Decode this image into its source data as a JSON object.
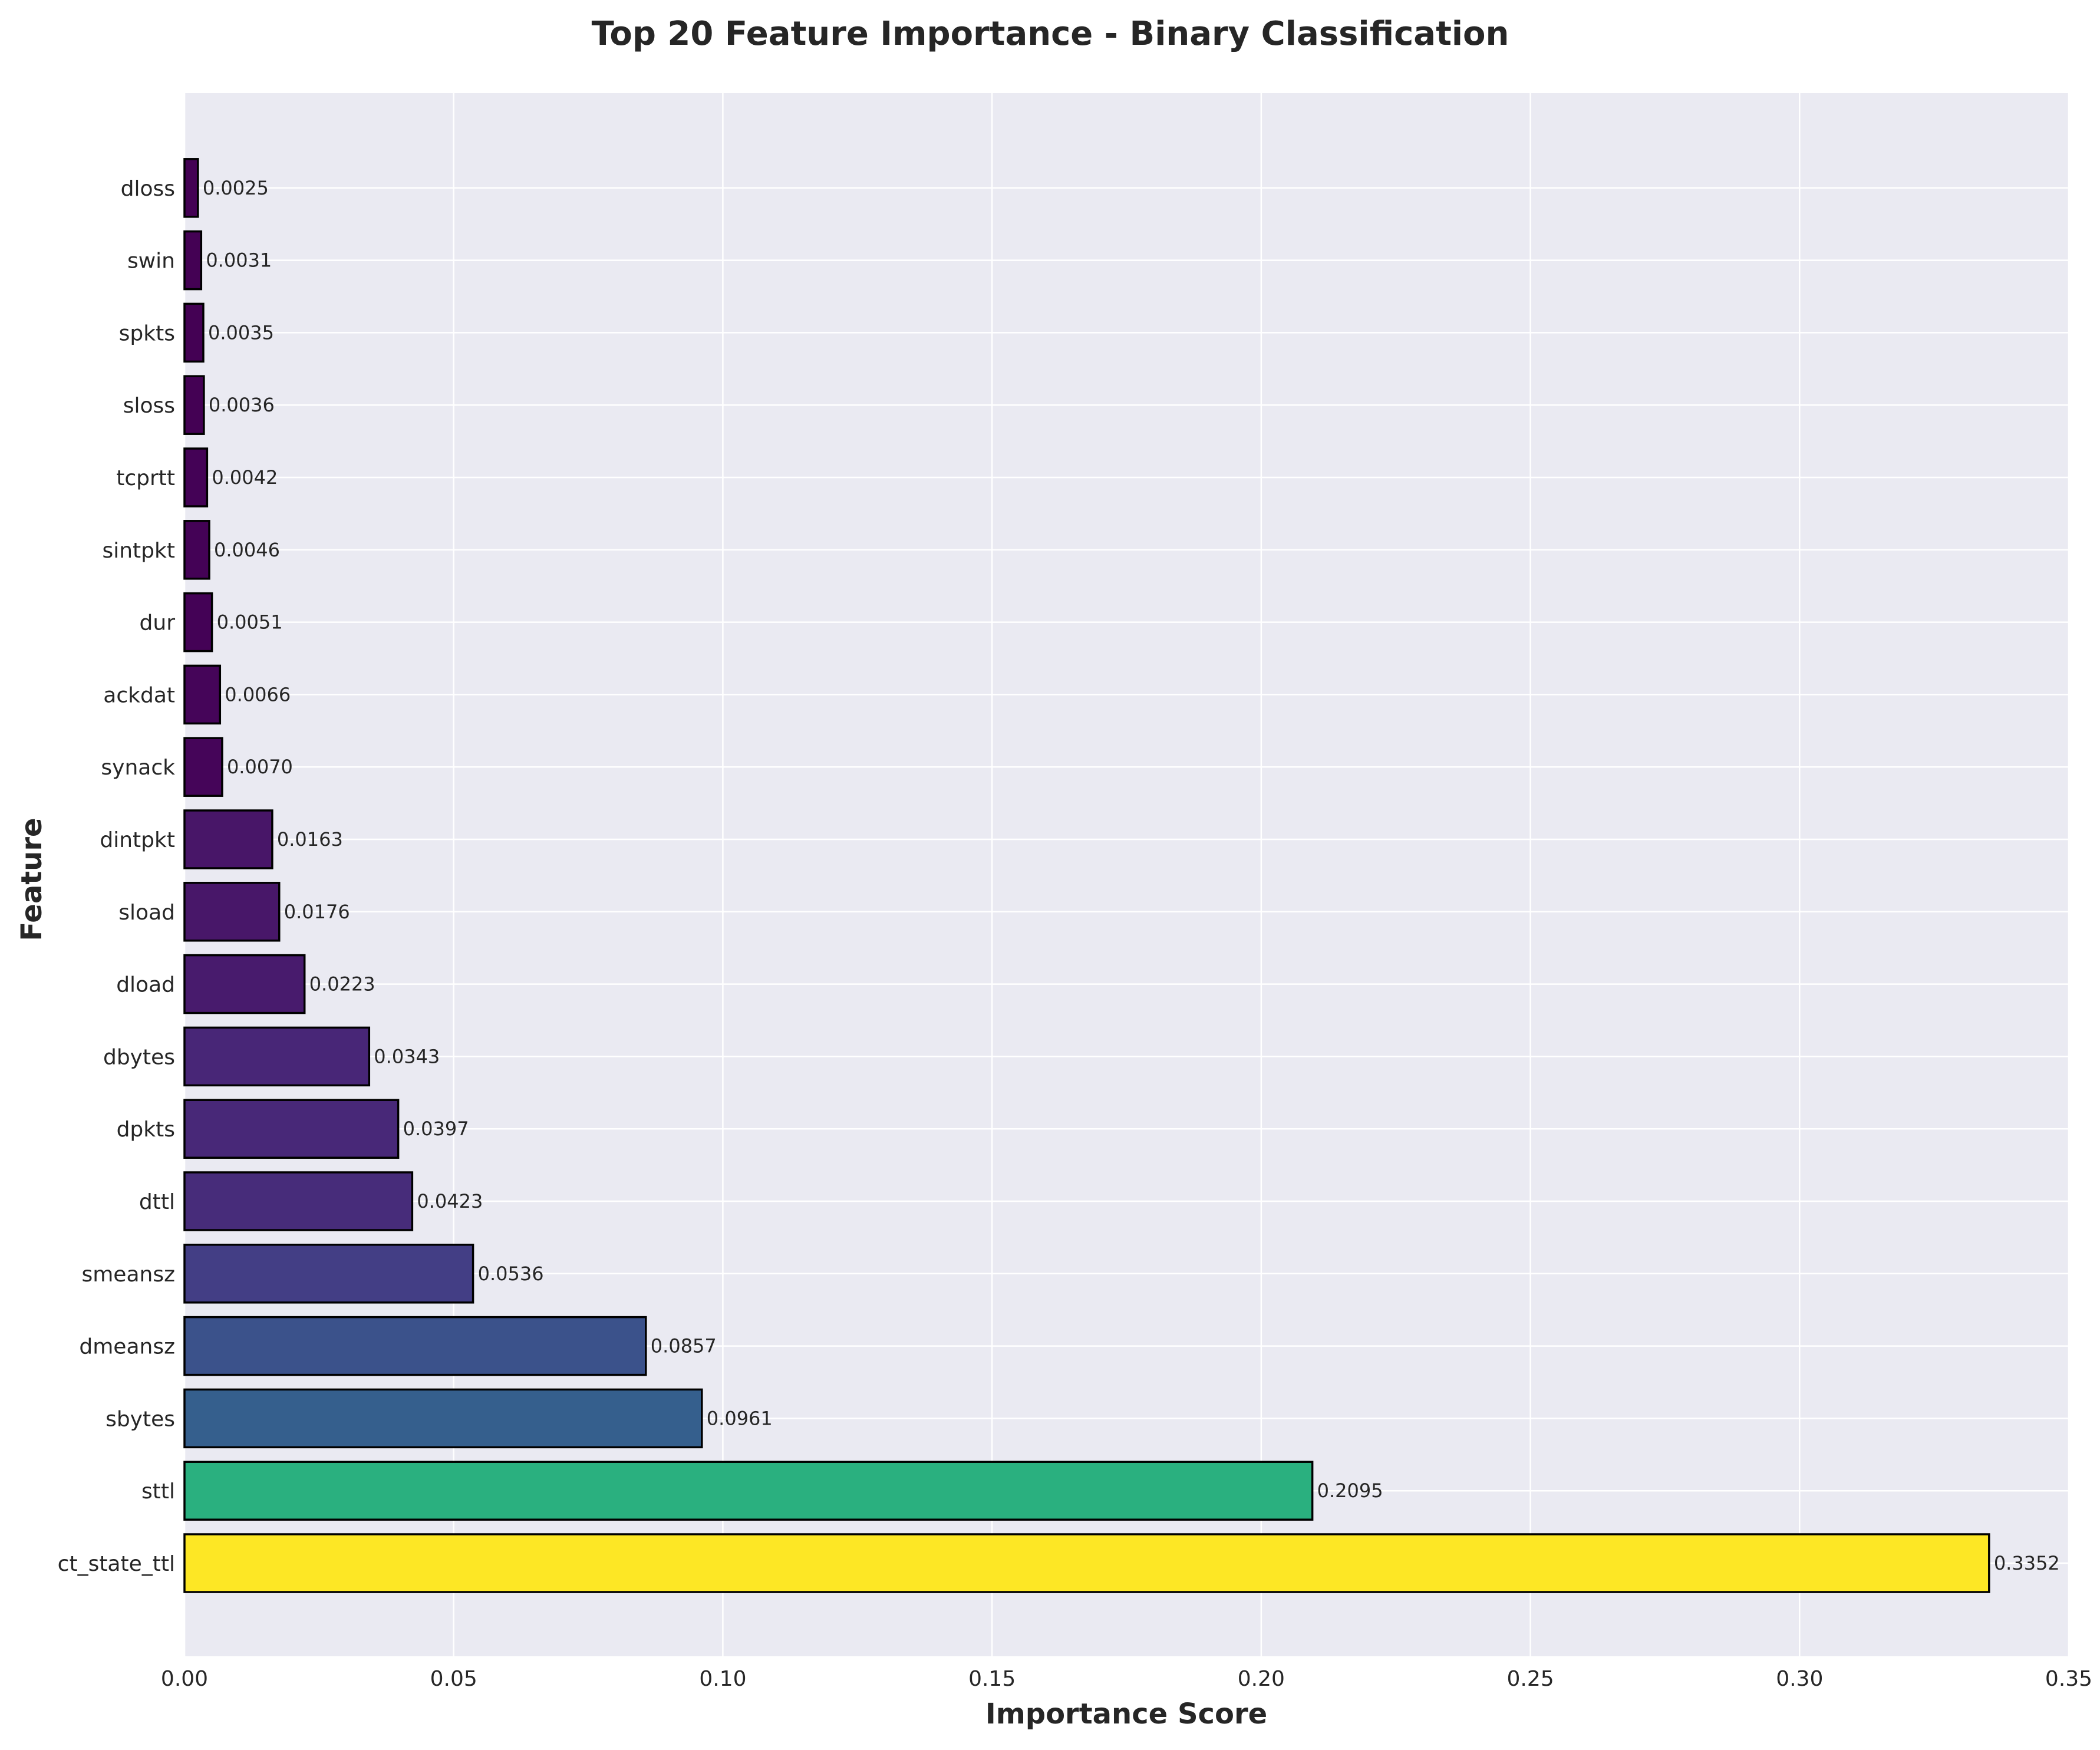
{
  "chart_data": {
    "type": "bar",
    "orientation": "horizontal",
    "title": "Top 20 Feature Importance - Binary Classification",
    "xlabel": "Importance Score",
    "ylabel": "Feature",
    "xlim": [
      0.0,
      0.35
    ],
    "xticks": [
      "0.00",
      "0.05",
      "0.10",
      "0.15",
      "0.20",
      "0.25",
      "0.30",
      "0.35"
    ],
    "grid": true,
    "background": "#eaeaf2",
    "colormap": "viridis",
    "categories": [
      "ct_state_ttl",
      "sttl",
      "sbytes",
      "dmeansz",
      "smeansz",
      "dttl",
      "dpkts",
      "dbytes",
      "dload",
      "sload",
      "dintpkt",
      "synack",
      "ackdat",
      "dur",
      "sintpkt",
      "tcprtt",
      "sloss",
      "spkts",
      "swin",
      "dloss"
    ],
    "values": [
      0.3352,
      0.2095,
      0.0961,
      0.0857,
      0.0536,
      0.0423,
      0.0397,
      0.0343,
      0.0223,
      0.0176,
      0.0163,
      0.007,
      0.0066,
      0.0051,
      0.0046,
      0.0042,
      0.0036,
      0.0035,
      0.0031,
      0.0025
    ],
    "value_labels": [
      "0.3352",
      "0.2095",
      "0.0961",
      "0.0857",
      "0.0536",
      "0.0423",
      "0.0397",
      "0.0343",
      "0.0223",
      "0.0176",
      "0.0163",
      "0.0070",
      "0.0066",
      "0.0051",
      "0.0046",
      "0.0042",
      "0.0036",
      "0.0035",
      "0.0031",
      "0.0025"
    ],
    "colors": [
      "#fde725",
      "#2ab07f",
      "#355f8d",
      "#3b528b",
      "#433e85",
      "#472c7a",
      "#482878",
      "#482677",
      "#481b6d",
      "#481769",
      "#481668",
      "#450559",
      "#450559",
      "#440256",
      "#440256",
      "#440256",
      "#440154",
      "#440154",
      "#440154",
      "#440154"
    ]
  }
}
